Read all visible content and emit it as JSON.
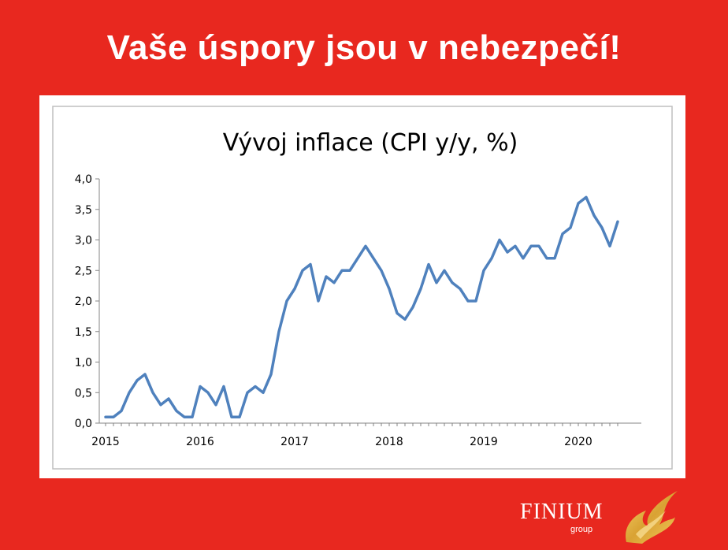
{
  "headline": "Vaše úspory jsou v nebezpečí!",
  "brand": {
    "name": "FINIUM",
    "sub": "group"
  },
  "colors": {
    "background": "#e8281f",
    "line": "#4f81bd",
    "card": "#ffffff",
    "frame": "#bfbfbf"
  },
  "chart_data": {
    "type": "line",
    "title": "Vývoj inflace (CPI y/y, %)",
    "xlabel": "",
    "ylabel": "",
    "ylim": [
      0,
      4
    ],
    "y_ticks": [
      "0,0",
      "0,5",
      "1,0",
      "1,5",
      "2,0",
      "2,5",
      "3,0",
      "3,5",
      "4,0"
    ],
    "x_ticks": [
      "2015",
      "2016",
      "2017",
      "2018",
      "2019",
      "2020"
    ],
    "grid": false,
    "legend": "none",
    "start": "2015-01",
    "series": [
      {
        "values": [
          0.1,
          0.1,
          0.2,
          0.5,
          0.7,
          0.8,
          0.5,
          0.3,
          0.4,
          0.2,
          0.1,
          0.1,
          0.6,
          0.5,
          0.3,
          0.6,
          0.1,
          0.1,
          0.5,
          0.6,
          0.5,
          0.8,
          1.5,
          2.0,
          2.2,
          2.5,
          2.6,
          2.0,
          2.4,
          2.3,
          2.5,
          2.5,
          2.7,
          2.9,
          2.7,
          2.5,
          2.2,
          1.8,
          1.7,
          1.9,
          2.2,
          2.6,
          2.3,
          2.5,
          2.3,
          2.2,
          2.0,
          2.0,
          2.5,
          2.7,
          3.0,
          2.8,
          2.9,
          2.7,
          2.9,
          2.9,
          2.7,
          2.7,
          3.1,
          3.2,
          3.6,
          3.7,
          3.4,
          3.2,
          2.9,
          3.3
        ]
      }
    ]
  }
}
